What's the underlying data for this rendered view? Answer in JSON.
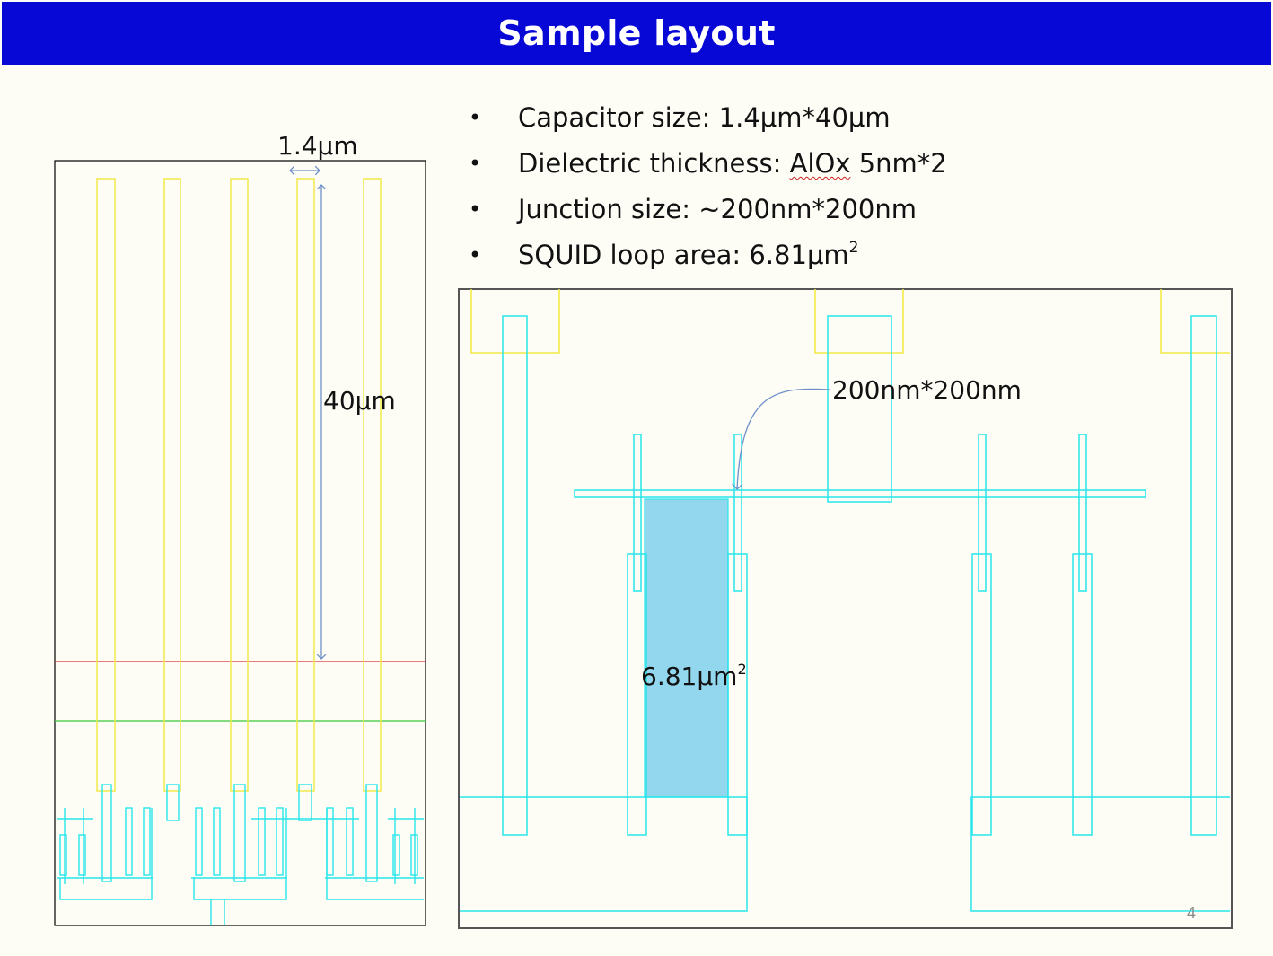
{
  "slide": {
    "title": "Sample layout",
    "page_number": "4"
  },
  "bullets": [
    {
      "label": "Capacitor size: 1.4μm*40μm"
    },
    {
      "label_prefix": "Dielectric thickness: ",
      "label_mark": "AlOx",
      "label_suffix": " 5nm*2"
    },
    {
      "label": "Junction size: ~200nm*200nm"
    },
    {
      "label": "SQUID loop area: 6.81μm",
      "sup": "2"
    }
  ],
  "left_diagram": {
    "width_label": "1.4μm",
    "height_label": "40μm"
  },
  "right_diagram": {
    "junction_label": "200nm*200nm",
    "area_label": "6.81μm",
    "area_sup": "2"
  },
  "colors": {
    "header": "#0707d6",
    "capacitor": "#f2ea4a",
    "wiring": "#27e6ec",
    "loop_fill": "#92d7ee",
    "red_line": "#e03030",
    "green_line": "#38c838",
    "dimension_arrow": "#6f8fc8"
  }
}
